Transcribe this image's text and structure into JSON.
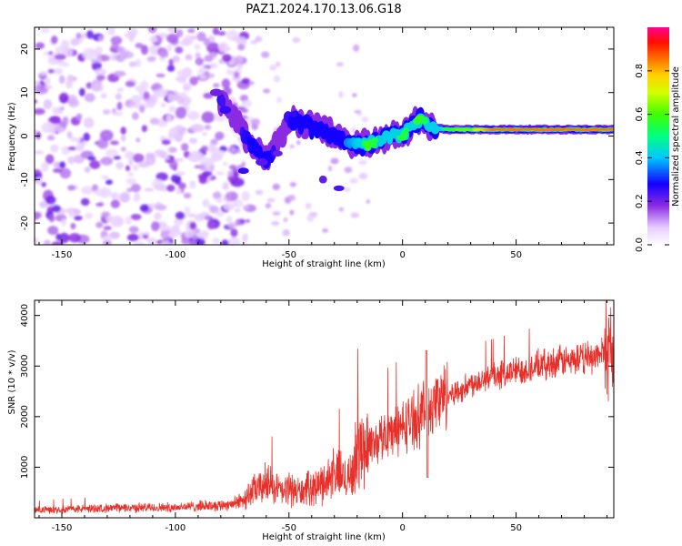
{
  "figure": {
    "title": "PAZ1.2024.170.13.06.G18"
  },
  "chart_data": [
    {
      "type": "heatmap",
      "xlabel": "Height of straight line (km)",
      "ylabel": "Frequency (Hz)",
      "xlim": [
        -162,
        93
      ],
      "ylim": [
        -25,
        25
      ],
      "xticks": [
        -150,
        -100,
        -50,
        0,
        50
      ],
      "yticks": [
        -20,
        -10,
        0,
        10,
        20
      ],
      "colorbar": {
        "label": "Normalized spectral amplitude",
        "range": [
          0.0,
          1.0
        ],
        "ticks": [
          0.0,
          0.2,
          0.4,
          0.6,
          0.8
        ]
      },
      "ridge": {
        "description_points": [
          {
            "x": -80,
            "y": 8,
            "amp": 0.25
          },
          {
            "x": -75,
            "y": 5,
            "amp": 0.2
          },
          {
            "x": -70,
            "y": 0,
            "amp": 0.25
          },
          {
            "x": -65,
            "y": -3,
            "amp": 0.3
          },
          {
            "x": -60,
            "y": -5,
            "amp": 0.35
          },
          {
            "x": -55,
            "y": -2,
            "amp": 0.2
          },
          {
            "x": -50,
            "y": 4,
            "amp": 0.25
          },
          {
            "x": -45,
            "y": 3,
            "amp": 0.35
          },
          {
            "x": -40,
            "y": 2,
            "amp": 0.3
          },
          {
            "x": -35,
            "y": 2,
            "amp": 0.35
          },
          {
            "x": -30,
            "y": 0,
            "amp": 0.3
          },
          {
            "x": -25,
            "y": -1,
            "amp": 0.35
          },
          {
            "x": -20,
            "y": -2,
            "amp": 0.4
          },
          {
            "x": -15,
            "y": -2,
            "amp": 0.6
          },
          {
            "x": -10,
            "y": -1,
            "amp": 0.5
          },
          {
            "x": -5,
            "y": 0,
            "amp": 0.45
          },
          {
            "x": 0,
            "y": 0,
            "amp": 0.55
          },
          {
            "x": 5,
            "y": 3,
            "amp": 0.5
          },
          {
            "x": 8,
            "y": 4,
            "amp": 0.6
          },
          {
            "x": 12,
            "y": 2,
            "amp": 0.45
          },
          {
            "x": 20,
            "y": 1.5,
            "amp": 0.55
          },
          {
            "x": 30,
            "y": 1.5,
            "amp": 0.7
          },
          {
            "x": 40,
            "y": 1.5,
            "amp": 0.85
          },
          {
            "x": 50,
            "y": 1.5,
            "amp": 0.95
          },
          {
            "x": 60,
            "y": 1.5,
            "amp": 1.0
          },
          {
            "x": 70,
            "y": 1.5,
            "amp": 1.0
          },
          {
            "x": 80,
            "y": 1.5,
            "amp": 0.95
          },
          {
            "x": 90,
            "y": 1.5,
            "amp": 0.9
          }
        ],
        "noise_region_x": [
          -162,
          -75
        ]
      }
    },
    {
      "type": "line",
      "xlabel": "Height of straight line (km)",
      "ylabel": "SNR (10 * v/v)",
      "xlim": [
        -162,
        93
      ],
      "ylim": [
        0,
        4300
      ],
      "xticks": [
        -150,
        -100,
        -50,
        0,
        50
      ],
      "yticks": [
        1000,
        2000,
        3000,
        4000
      ],
      "series": [
        {
          "color": "#e8302a",
          "x": [
            -162,
            -150,
            -140,
            -130,
            -120,
            -110,
            -100,
            -90,
            -80,
            -72,
            -68,
            -65,
            -62,
            -60,
            -58,
            -55,
            -52,
            -50,
            -48,
            -45,
            -42,
            -40,
            -38,
            -35,
            -32,
            -30,
            -28,
            -25,
            -22,
            -20,
            -18,
            -15,
            -12,
            -10,
            -8,
            -5,
            -2,
            0,
            3,
            6,
            9,
            10,
            12,
            15,
            18,
            20,
            25,
            30,
            35,
            40,
            45,
            50,
            55,
            60,
            65,
            70,
            75,
            80,
            85,
            88,
            90,
            93
          ],
          "y": [
            150,
            170,
            180,
            190,
            200,
            200,
            210,
            230,
            250,
            300,
            450,
            550,
            600,
            700,
            650,
            550,
            500,
            600,
            550,
            500,
            550,
            650,
            600,
            700,
            800,
            900,
            850,
            800,
            900,
            1300,
            1400,
            1450,
            1500,
            1550,
            1650,
            1700,
            1750,
            1800,
            1900,
            2000,
            2100,
            2200,
            2200,
            2300,
            2400,
            2450,
            2500,
            2650,
            2750,
            2800,
            2850,
            2900,
            2950,
            3000,
            3050,
            3100,
            3100,
            3150,
            3200,
            3250,
            3300,
            3350
          ]
        }
      ]
    }
  ]
}
